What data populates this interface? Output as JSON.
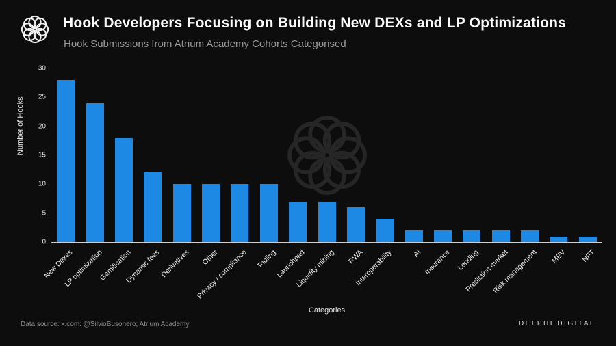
{
  "header": {
    "title": "Hook Developers Focusing on Building New DEXs and LP Optimizations",
    "subtitle": "Hook Submissions from Atrium Academy Cohorts Categorised"
  },
  "icons": {
    "logo": "delphi-knot-logo",
    "watermark": "delphi-knot-watermark"
  },
  "footer": {
    "source": "Data source: x.com: @SilvioBusonero; Atrium Academy",
    "brand": "DELPHI DIGITAL"
  },
  "chart_data": {
    "type": "bar",
    "title": "Hook Developers Focusing on Building New DEXs and LP Optimizations",
    "subtitle": "Hook Submissions from Atrium Academy Cohorts Categorised",
    "categories": [
      "New Dexes",
      "LP optimization",
      "Gamification",
      "Dynamic fees",
      "Derivatives",
      "Other",
      "Privacy / compliance",
      "Tooling",
      "Launchpad",
      "Liquidity mining",
      "RWA",
      "Interoperability",
      "AI",
      "Insurance",
      "Lending",
      "Prediction market",
      "Risk management",
      "MEV",
      "NFT"
    ],
    "values": [
      28,
      24,
      18,
      12,
      10,
      10,
      10,
      10,
      7,
      7,
      6,
      4,
      2,
      2,
      2,
      2,
      2,
      1,
      1
    ],
    "xlabel": "Categories",
    "ylabel": "Number of Hooks",
    "ylim": [
      0,
      30
    ],
    "yticks": [
      0,
      5,
      10,
      15,
      20,
      25,
      30
    ],
    "bar_color": "#1e88e5",
    "grid": false,
    "legend": false
  }
}
